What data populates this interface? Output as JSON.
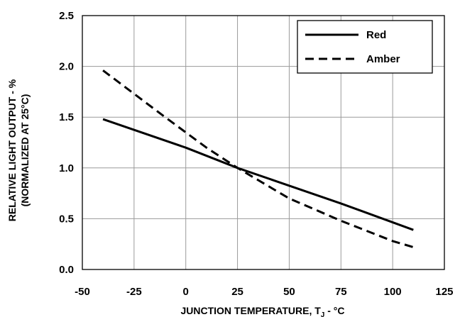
{
  "chart_data": {
    "type": "line",
    "title": "",
    "xlabel": "JUNCTION TEMPERATURE, T",
    "xlabel_subscript": "J",
    "xlabel_suffix": " - °C",
    "ylabel_line1": "RELATIVE LIGHT OUTPUT - %",
    "ylabel_line2": "(NORMALIZED AT 25°C)",
    "xlim": [
      -50,
      125
    ],
    "ylim": [
      0,
      2.5
    ],
    "xticks": [
      -50,
      -25,
      0,
      25,
      50,
      75,
      100,
      125
    ],
    "xtick_labels": [
      "-50",
      "-25",
      "0",
      "25",
      "50",
      "75",
      "100",
      "125"
    ],
    "yticks": [
      0,
      0.5,
      1.0,
      1.5,
      2.0,
      2.5
    ],
    "ytick_labels": [
      "0.0",
      "0.5",
      "1.0",
      "1.5",
      "2.0",
      "2.5"
    ],
    "grid": true,
    "legend_position": "top-right",
    "series": [
      {
        "name": "Red",
        "style": "solid",
        "color": "#000000",
        "x": [
          -40,
          0,
          25,
          75,
          110
        ],
        "y": [
          1.48,
          1.2,
          1.0,
          0.65,
          0.39
        ]
      },
      {
        "name": "Amber",
        "style": "dashed",
        "color": "#000000",
        "x": [
          -40,
          -10,
          10,
          25,
          50,
          75,
          100,
          110
        ],
        "y": [
          1.96,
          1.5,
          1.2,
          1.0,
          0.7,
          0.48,
          0.28,
          0.22
        ]
      }
    ]
  }
}
